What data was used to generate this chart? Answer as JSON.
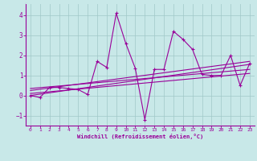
{
  "xlabel": "Windchill (Refroidissement éolien,°C)",
  "bg_color": "#c8e8e8",
  "grid_color": "#a0c8c8",
  "line_color": "#990099",
  "xlim": [
    -0.5,
    23.5
  ],
  "ylim": [
    -1.5,
    4.6
  ],
  "yticks": [
    -1,
    0,
    1,
    2,
    3,
    4
  ],
  "xticks": [
    0,
    1,
    2,
    3,
    4,
    5,
    6,
    7,
    8,
    9,
    10,
    11,
    12,
    13,
    14,
    15,
    16,
    17,
    18,
    19,
    20,
    21,
    22,
    23
  ],
  "series1": [
    0.0,
    -0.1,
    0.4,
    0.4,
    0.35,
    0.3,
    0.05,
    1.7,
    1.4,
    4.1,
    2.6,
    1.35,
    -1.2,
    1.3,
    1.3,
    3.2,
    2.8,
    2.3,
    1.05,
    1.0,
    1.0,
    2.0,
    0.5,
    1.6
  ],
  "series2_x": [
    0,
    23
  ],
  "series2_y": [
    0.0,
    1.55
  ],
  "series3_x": [
    0,
    23
  ],
  "series3_y": [
    0.35,
    1.3
  ],
  "series4_x": [
    0,
    23
  ],
  "series4_y": [
    0.25,
    1.7
  ],
  "series5_x": [
    0,
    23
  ],
  "series5_y": [
    0.1,
    1.1
  ]
}
